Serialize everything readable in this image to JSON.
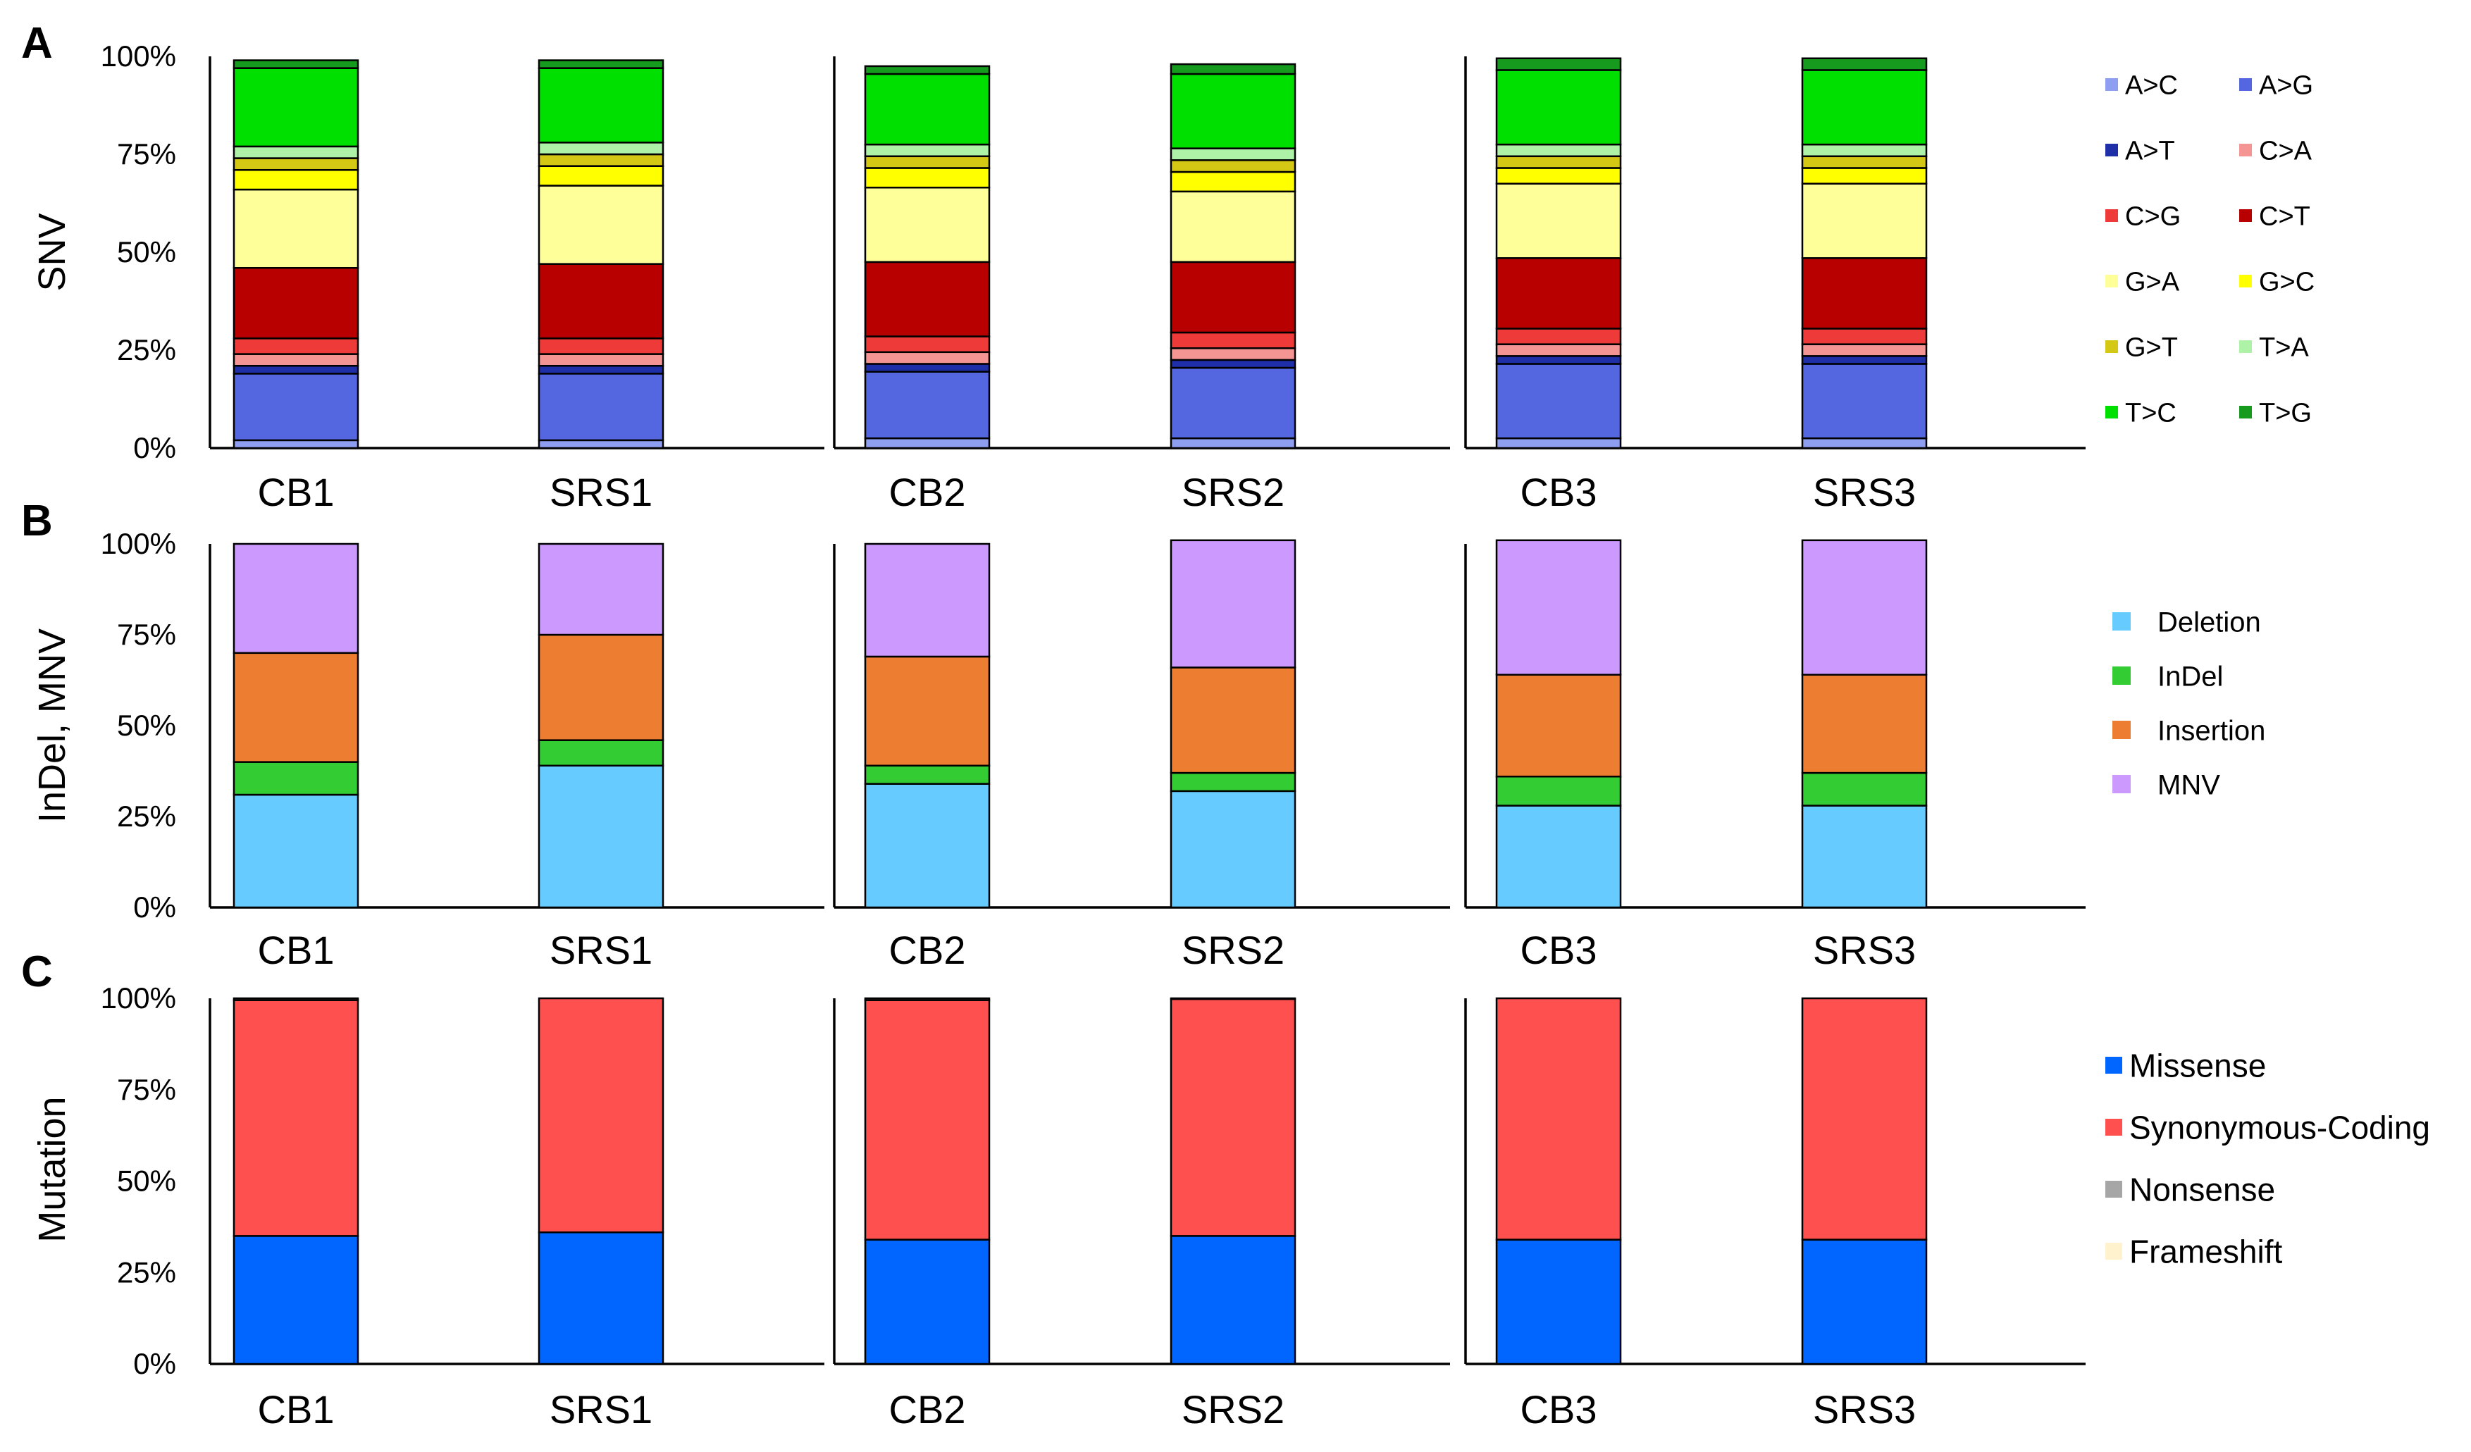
{
  "figure": {
    "panels": [
      {
        "letter": "A",
        "ylabel": "SNV",
        "legend_layout": "two-column",
        "yticks": [
          "0%",
          "25%",
          "50%",
          "75%",
          "100%"
        ],
        "chart_data": {
          "type": "bar",
          "stacked": true,
          "title": "",
          "xlabel": "",
          "ylabel": "SNV",
          "ylim": [
            0,
            100
          ],
          "categories": [
            "CB1",
            "SRS1",
            "CB2",
            "SRS2",
            "CB3",
            "SRS3"
          ],
          "groups": [
            [
              "CB1",
              "SRS1"
            ],
            [
              "CB2",
              "SRS2"
            ],
            [
              "CB3",
              "SRS3"
            ]
          ],
          "series": [
            {
              "name": "A>C",
              "color": "#8e9ef0",
              "values": [
                2,
                2,
                2.5,
                2.5,
                2.5,
                2.5
              ]
            },
            {
              "name": "A>G",
              "color": "#5467e0",
              "values": [
                17,
                17,
                17,
                18,
                19,
                19
              ]
            },
            {
              "name": "A>T",
              "color": "#1f2fa8",
              "values": [
                2,
                2,
                2,
                2,
                2,
                2
              ]
            },
            {
              "name": "C>A",
              "color": "#f59593",
              "values": [
                3,
                3,
                3,
                3,
                3,
                3
              ]
            },
            {
              "name": "C>G",
              "color": "#ee3a38",
              "values": [
                4,
                4,
                4,
                4,
                4,
                4
              ]
            },
            {
              "name": "C>T",
              "color": "#b80000",
              "values": [
                18,
                19,
                19,
                18,
                18,
                18
              ]
            },
            {
              "name": "G>A",
              "color": "#ffff99",
              "values": [
                20,
                20,
                19,
                18,
                19,
                19
              ]
            },
            {
              "name": "G>C",
              "color": "#ffff00",
              "values": [
                5,
                5,
                5,
                5,
                4,
                4
              ]
            },
            {
              "name": "G>T",
              "color": "#d4c814",
              "values": [
                3,
                3,
                3,
                3,
                3,
                3
              ]
            },
            {
              "name": "T>A",
              "color": "#aef2a8",
              "values": [
                3,
                3,
                3,
                3,
                3,
                3
              ]
            },
            {
              "name": "T>C",
              "color": "#00e000",
              "values": [
                20,
                19,
                18,
                19,
                19,
                19
              ]
            },
            {
              "name": "T>G",
              "color": "#179b1f",
              "values": [
                2,
                2,
                2,
                2.5,
                3,
                3
              ]
            }
          ]
        }
      },
      {
        "letter": "B",
        "ylabel": "InDel, MNV",
        "legend_layout": "one-column",
        "yticks": [
          "0%",
          "25%",
          "50%",
          "75%",
          "100%"
        ],
        "chart_data": {
          "type": "bar",
          "stacked": true,
          "title": "",
          "xlabel": "",
          "ylabel": "InDel, MNV",
          "ylim": [
            0,
            100
          ],
          "categories": [
            "CB1",
            "SRS1",
            "CB2",
            "SRS2",
            "CB3",
            "SRS3"
          ],
          "groups": [
            [
              "CB1",
              "SRS1"
            ],
            [
              "CB2",
              "SRS2"
            ],
            [
              "CB3",
              "SRS3"
            ]
          ],
          "series": [
            {
              "name": "Deletion",
              "color": "#66ccff",
              "values": [
                31,
                39,
                34,
                32,
                28,
                28
              ]
            },
            {
              "name": "InDel",
              "color": "#33cc33",
              "values": [
                9,
                7,
                5,
                5,
                8,
                9
              ]
            },
            {
              "name": "Insertion",
              "color": "#ed7d31",
              "values": [
                30,
                29,
                30,
                29,
                28,
                27
              ]
            },
            {
              "name": "MNV",
              "color": "#cc99ff",
              "values": [
                30,
                25,
                31,
                35,
                37,
                37
              ]
            }
          ]
        }
      },
      {
        "letter": "C",
        "ylabel": "Mutation",
        "legend_layout": "one-column",
        "yticks": [
          "0%",
          "25%",
          "50%",
          "75%",
          "100%"
        ],
        "chart_data": {
          "type": "bar",
          "stacked": true,
          "title": "",
          "xlabel": "",
          "ylabel": "Mutation",
          "ylim": [
            0,
            100
          ],
          "categories": [
            "CB1",
            "SRS1",
            "CB2",
            "SRS2",
            "CB3",
            "SRS3"
          ],
          "groups": [
            [
              "CB1",
              "SRS1"
            ],
            [
              "CB2",
              "SRS2"
            ],
            [
              "CB3",
              "SRS3"
            ]
          ],
          "series": [
            {
              "name": "Missense",
              "color": "#0066ff",
              "values": [
                35,
                36,
                34,
                35,
                34,
                34
              ]
            },
            {
              "name": "Synonymous-Coding",
              "color": "#ff5050",
              "values": [
                64.5,
                64,
                65.5,
                64.8,
                66,
                66
              ]
            },
            {
              "name": "Nonsense",
              "color": "#a6a6a6",
              "values": [
                0.5,
                0,
                0.5,
                0.2,
                0,
                0
              ]
            },
            {
              "name": "Frameshift",
              "color": "#fff2cc",
              "values": [
                0,
                0,
                0,
                0,
                0,
                0
              ]
            }
          ]
        }
      }
    ]
  }
}
